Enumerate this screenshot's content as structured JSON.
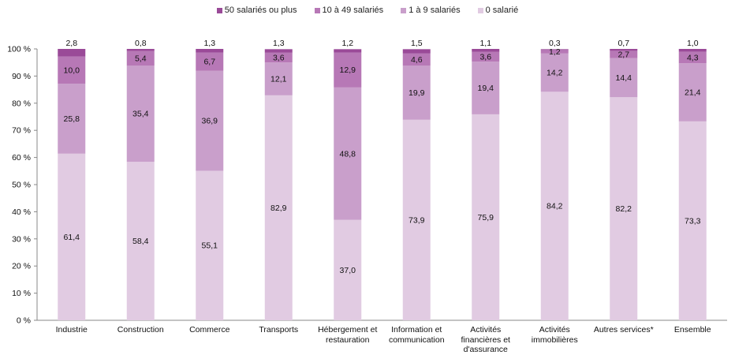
{
  "chart_data": {
    "type": "bar",
    "stacked": true,
    "title": "",
    "xlabel": "",
    "ylabel": "",
    "ylim": [
      0,
      100
    ],
    "yticks": [
      "0 %",
      "10 %",
      "20 %",
      "30 %",
      "40 %",
      "50 %",
      "60 %",
      "70 %",
      "80 %",
      "90 %",
      "100 %"
    ],
    "categories": [
      "Industrie",
      "Construction",
      "Commerce",
      "Transports",
      "Hébergement et restauration",
      "Information et communication",
      "Activités financières et d'assurance",
      "Activités immobilières",
      "Autres services*",
      "Ensemble"
    ],
    "category_lines": [
      [
        "Industrie"
      ],
      [
        "Construction"
      ],
      [
        "Commerce"
      ],
      [
        "Transports"
      ],
      [
        "Hébergement et",
        "restauration"
      ],
      [
        "Information et",
        "communication"
      ],
      [
        "Activités",
        "financières et",
        "d'assurance"
      ],
      [
        "Activités",
        "immobilières"
      ],
      [
        "Autres services*"
      ],
      [
        "Ensemble"
      ]
    ],
    "series": [
      {
        "name": "0 salarié",
        "color": "#e1cbe2",
        "values": [
          61.4,
          58.4,
          55.1,
          82.9,
          37.0,
          73.9,
          75.9,
          84.2,
          82.2,
          73.3
        ],
        "labels": [
          "61,4",
          "58,4",
          "55,1",
          "82,9",
          "37,0",
          "73,9",
          "75,9",
          "84,2",
          "82,2",
          "73,3"
        ]
      },
      {
        "name": "1 à 9 salariés",
        "color": "#c99fcb",
        "values": [
          25.8,
          35.4,
          36.9,
          12.1,
          48.8,
          19.9,
          19.4,
          14.2,
          14.4,
          21.4
        ],
        "labels": [
          "25,8",
          "35,4",
          "36,9",
          "12,1",
          "48,8",
          "19,9",
          "19,4",
          "14,2",
          "14,4",
          "21,4"
        ]
      },
      {
        "name": "10 à 49 salariés",
        "color": "#b778b6",
        "values": [
          10.0,
          5.4,
          6.7,
          3.6,
          12.9,
          4.6,
          3.6,
          1.2,
          2.7,
          4.3
        ],
        "labels": [
          "10,0",
          "5,4",
          "6,7",
          "3,6",
          "12,9",
          "4,6",
          "3,6",
          "1,2",
          "2,7",
          "4,3"
        ]
      },
      {
        "name": "50 salariés ou plus",
        "color": "#9a4a98",
        "values": [
          2.8,
          0.8,
          1.3,
          1.3,
          1.2,
          1.5,
          1.1,
          0.3,
          0.7,
          1.0
        ],
        "labels": [
          "2,8",
          "0,8",
          "1,3",
          "1,3",
          "1,2",
          "1,5",
          "1,1",
          "0,3",
          "0,7",
          "1,0"
        ]
      }
    ],
    "legend": {
      "position": "top",
      "order": [
        "50 salariés ou plus",
        "10 à 49 salariés",
        "1 à 9 salariés",
        "0 salarié"
      ]
    },
    "grid": false
  }
}
